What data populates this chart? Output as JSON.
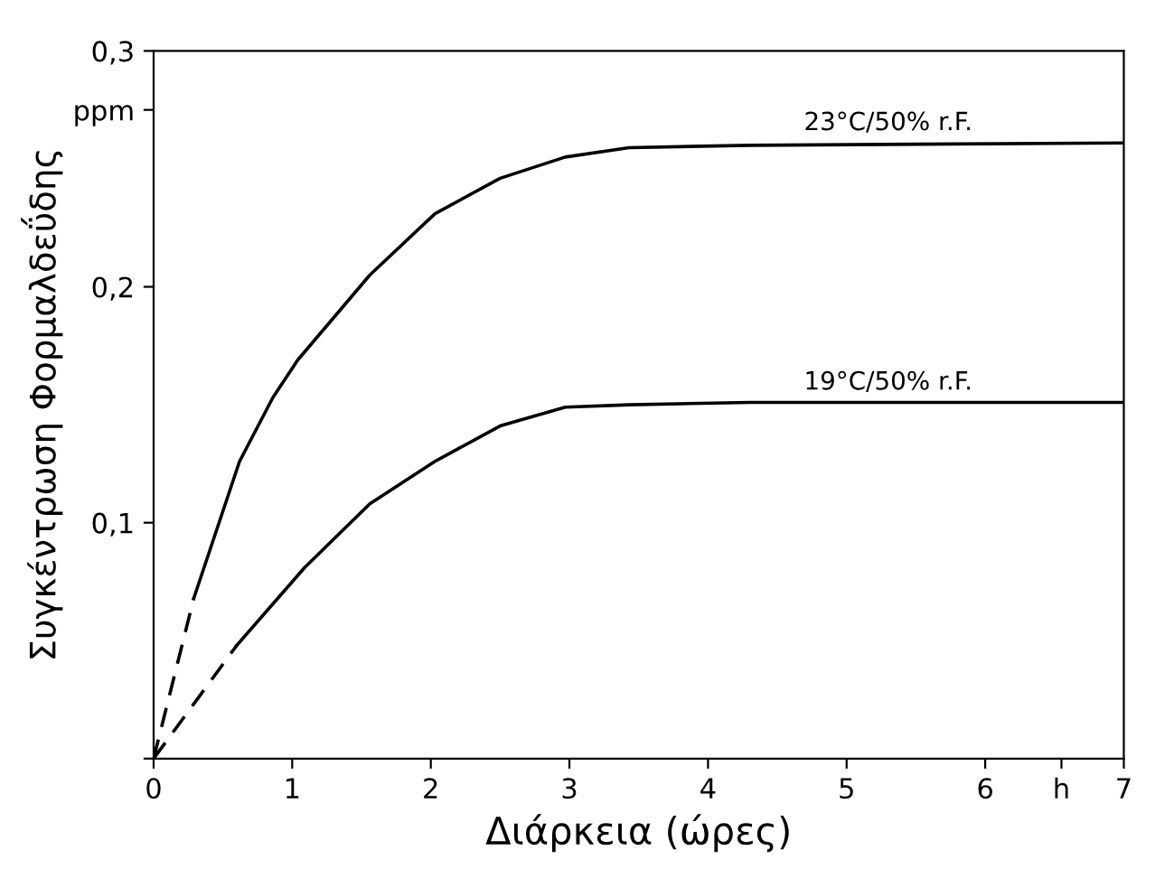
{
  "chart_data": {
    "type": "line",
    "xlabel": "Διάρκεια (ώρες)",
    "ylabel": "Συγκέντρωση Φορμαλδεΰδης",
    "series": [
      {
        "color": "#000000",
        "line_style": "dashed",
        "x": [
          0,
          0.29
        ],
        "values": [
          0,
          0.068
        ]
      },
      {
        "color": "#000000",
        "line_style": "solid",
        "x": [
          0.29,
          0.62,
          0.86,
          1.04,
          1.56,
          2.03,
          2.5,
          2.97,
          3.43,
          4.3,
          7
        ],
        "values": [
          0.068,
          0.126,
          0.153,
          0.169,
          0.205,
          0.231,
          0.246,
          0.255,
          0.259,
          0.26,
          0.261
        ]
      },
      {
        "color": "#000000",
        "line_style": "dashed",
        "x": [
          0,
          0.6
        ],
        "values": [
          0,
          0.048
        ]
      },
      {
        "color": "#000000",
        "line_style": "solid",
        "x": [
          0.6,
          1.09,
          1.56,
          2.03,
          2.5,
          2.97,
          3.43,
          4.3,
          7
        ],
        "values": [
          0.048,
          0.081,
          0.108,
          0.126,
          0.141,
          0.149,
          0.15,
          0.151,
          0.151
        ]
      }
    ],
    "annotations": [
      {
        "text": "23°C/50% r.F.",
        "x": 5.3,
        "y": 0.261
      },
      {
        "text": "19°C/50% r.F.",
        "x": 5.3,
        "y": 0.151
      }
    ],
    "xlim": [
      0,
      7
    ],
    "ylim": [
      0,
      0.3
    ],
    "xticks": [
      0,
      1,
      2,
      3,
      4,
      5,
      6,
      {
        "value": 6.55,
        "label": "h"
      },
      7
    ],
    "yticks": [
      {
        "value": 0,
        "label": null
      },
      {
        "value": 0.1,
        "label": "0,1"
      },
      {
        "value": 0.2,
        "label": "0,2"
      },
      {
        "value": 0.275,
        "label": "ppm"
      },
      {
        "value": 0.3,
        "label": "0,3"
      }
    ],
    "grid": false,
    "legend": false,
    "marker": "none"
  }
}
